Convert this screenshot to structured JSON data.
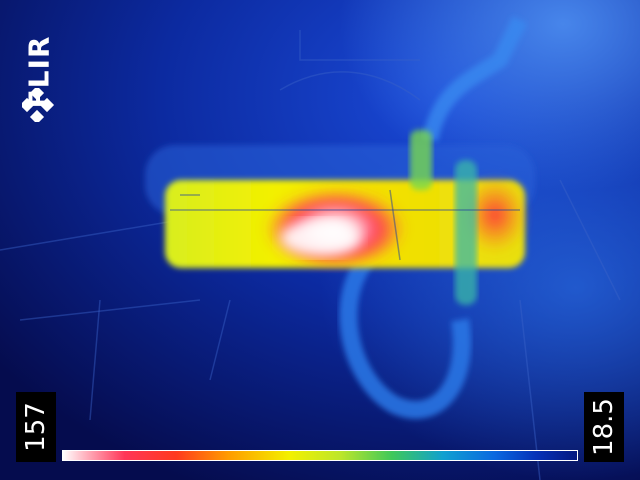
{
  "brand": {
    "logo_text": "FLIR"
  },
  "scale": {
    "max": "157",
    "min": "18.5",
    "colors": [
      "#ffffff",
      "#ff3658",
      "#ff9a00",
      "#f3f000",
      "#3fc85a",
      "#10a0d0",
      "#041880"
    ]
  },
  "colors": {
    "background": "#0a1a78",
    "hot": "#ffffff",
    "warm": "#ff3658",
    "mid": "#f3f000",
    "cool": "#2a6de0"
  }
}
